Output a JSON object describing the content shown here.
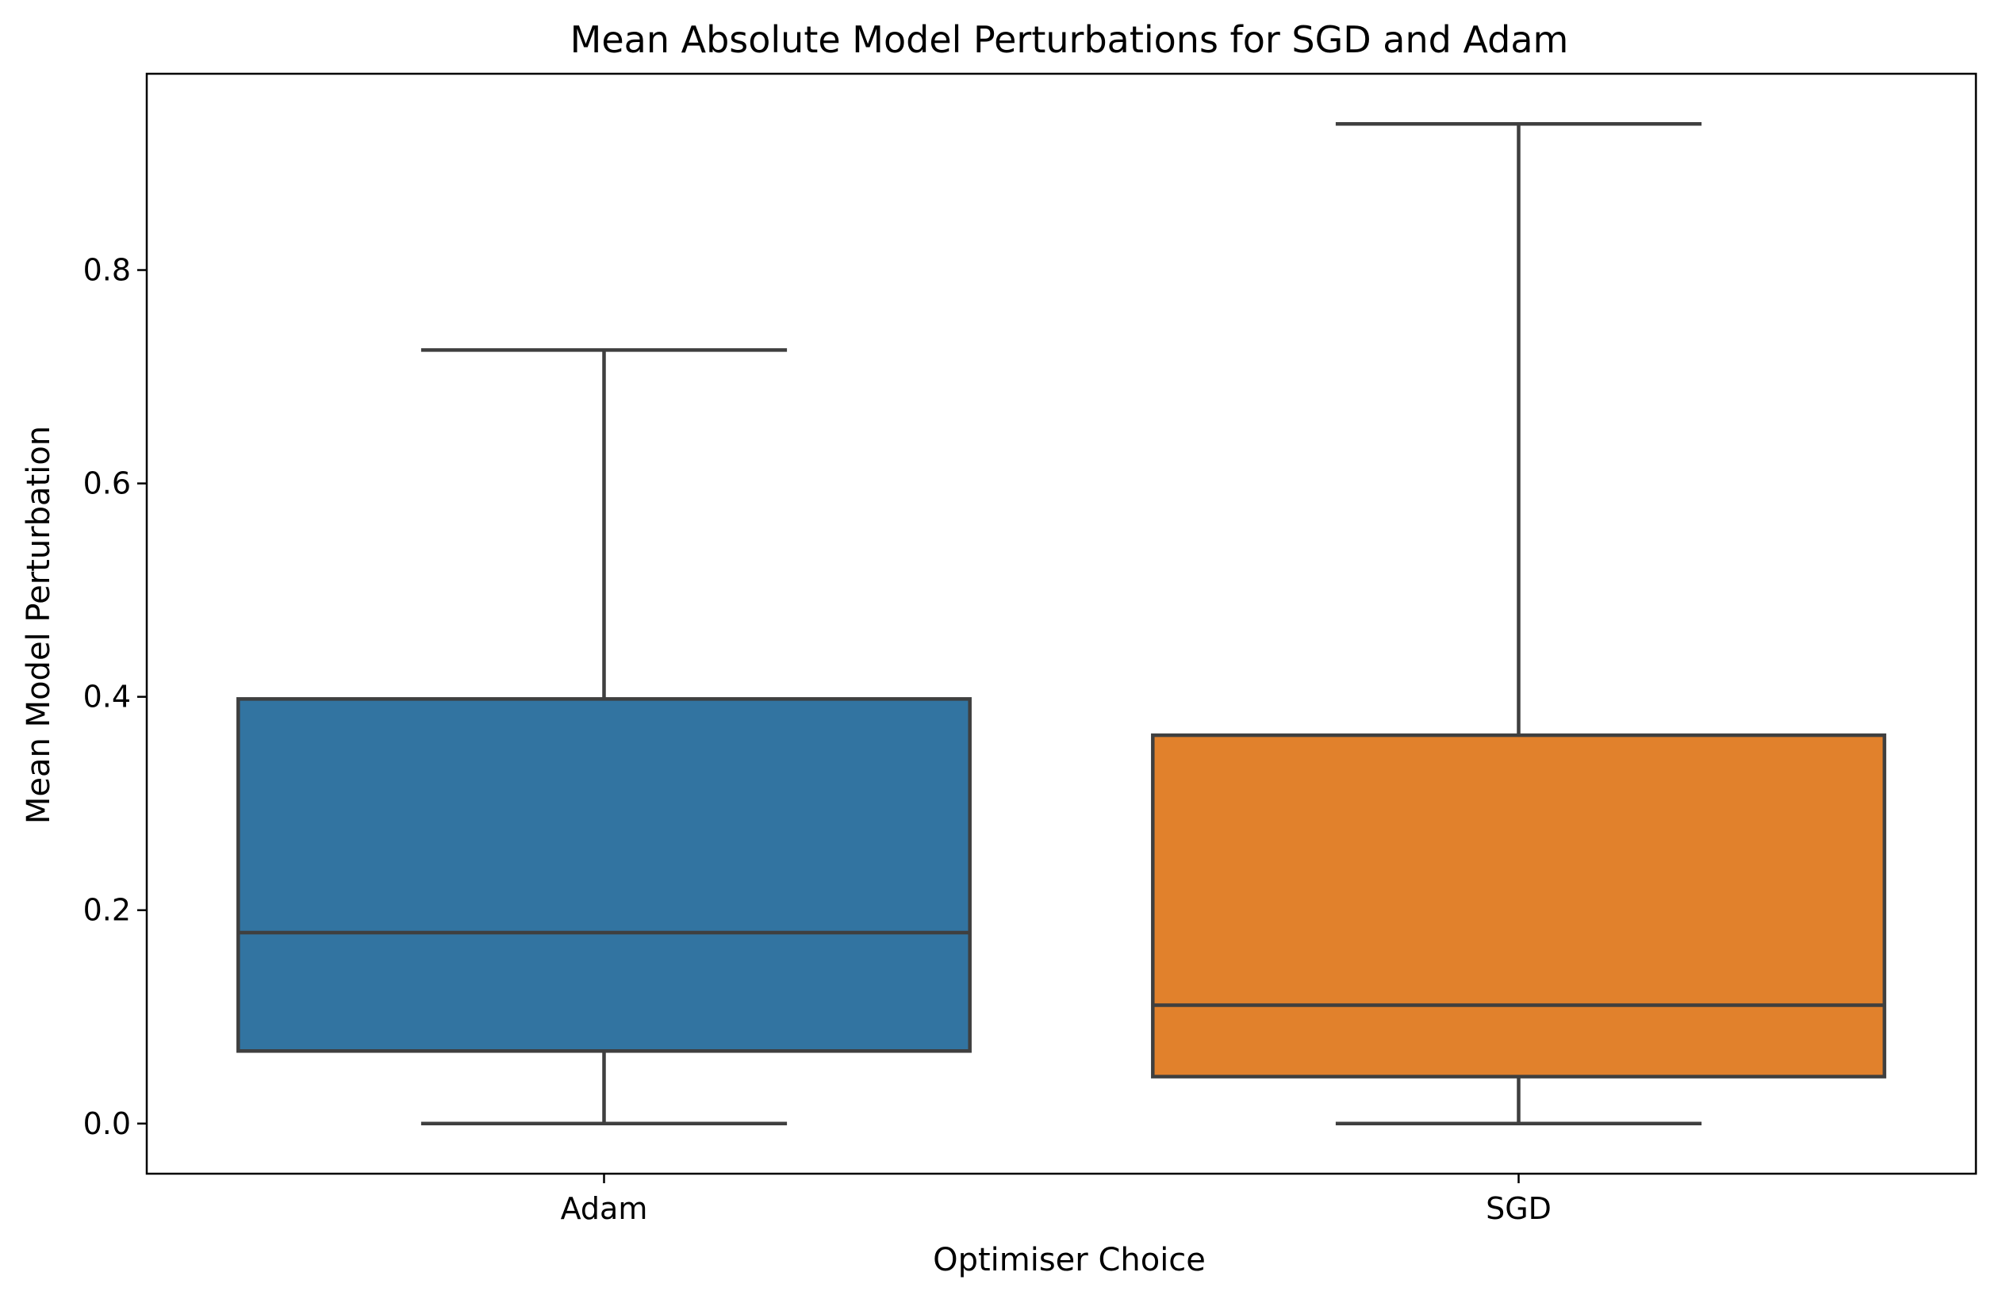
{
  "chart_data": {
    "type": "box",
    "title": "Mean Absolute Model Perturbations for SGD and Adam",
    "xlabel": "Optimiser Choice",
    "ylabel": "Mean Model Perturbation",
    "ylim": [
      -0.047,
      0.984
    ],
    "yticks": [
      0.0,
      0.2,
      0.4,
      0.6,
      0.8
    ],
    "ytick_labels": [
      "0.0",
      "0.2",
      "0.4",
      "0.6",
      "0.8"
    ],
    "grid": false,
    "categories": [
      "Adam",
      "SGD"
    ],
    "boxes": [
      {
        "category": "Adam",
        "whisker_low": 0.0,
        "q1": 0.068,
        "median": 0.179,
        "q3": 0.398,
        "whisker_high": 0.725,
        "color": "#3274a1"
      },
      {
        "category": "SGD",
        "whisker_low": 0.0,
        "q1": 0.044,
        "median": 0.111,
        "q3": 0.364,
        "whisker_high": 0.937,
        "color": "#e1812c"
      }
    ],
    "line_color": "#3f3f3f"
  }
}
